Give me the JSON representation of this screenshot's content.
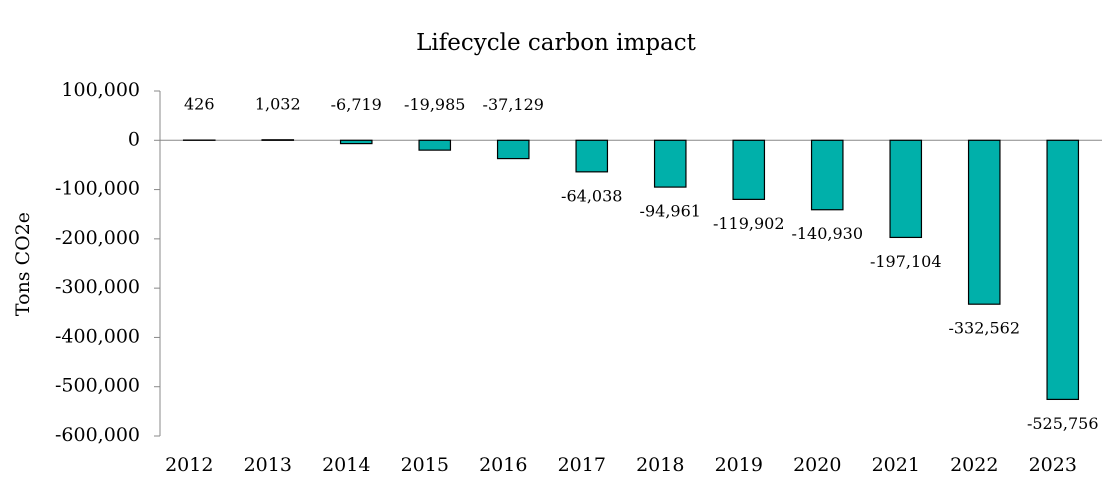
{
  "chart_data": {
    "type": "bar",
    "title": "Lifecycle carbon impact",
    "y_label": "Tons CO2e",
    "categories": [
      "2012",
      "2013",
      "2014",
      "2015",
      "2016",
      "2017",
      "2018",
      "2019",
      "2020",
      "2021",
      "2022",
      "2023"
    ],
    "values": [
      426,
      1032,
      -6719,
      -19985,
      -37129,
      -64038,
      -94961,
      -119902,
      -140930,
      -197104,
      -332562,
      -525756
    ],
    "value_labels": [
      "426",
      "1,032",
      "-6,719",
      "-19,985",
      "-37,129",
      "-64,038",
      "-94,961",
      "-119,902",
      "-140,930",
      "-197,104",
      "-332,562",
      "-525,756"
    ],
    "color": "#00b0aa",
    "ylim": [
      -600000,
      100000
    ],
    "yticks": [
      {
        "value": -600000,
        "label": "-600,000"
      },
      {
        "value": -500000,
        "label": "-500,000"
      },
      {
        "value": -400000,
        "label": "-400,000"
      },
      {
        "value": -300000,
        "label": "-300,000"
      },
      {
        "value": -200000,
        "label": "-200,000"
      },
      {
        "value": -100000,
        "label": "-100,000"
      },
      0,
      {
        "value": 100000,
        "label": "100,000"
      }
    ]
  }
}
